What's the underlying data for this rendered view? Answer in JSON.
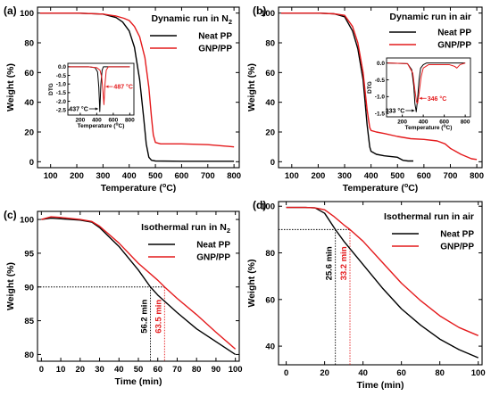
{
  "chart_data": [
    {
      "panel": "(a)",
      "type": "line",
      "title": "Dynamic run in N",
      "title_sub": "2",
      "xlabel": "Temperature (",
      "xlabel_deg": "o",
      "xlabel_unit": "C)",
      "ylabel": "Weight (%)",
      "xlim": [
        50,
        820
      ],
      "ylim": [
        -4,
        104
      ],
      "xticks": [
        100,
        200,
        300,
        400,
        500,
        600,
        700,
        800
      ],
      "yticks": [
        0,
        20,
        40,
        60,
        80,
        100
      ],
      "legend_position": "right",
      "series": [
        {
          "name": "Neat PP",
          "color": "#000000",
          "x": [
            60,
            200,
            300,
            350,
            375,
            400,
            420,
            440,
            455,
            465,
            475,
            485,
            500,
            600,
            700,
            800
          ],
          "y": [
            100,
            100,
            99.3,
            97,
            94,
            88,
            77,
            55,
            30,
            12,
            3,
            1,
            0.5,
            0.3,
            0.3,
            0.3
          ]
        },
        {
          "name": "GNP/PP",
          "color": "#e41a1c",
          "x": [
            60,
            200,
            300,
            350,
            380,
            400,
            420,
            440,
            460,
            475,
            485,
            492,
            500,
            520,
            600,
            700,
            800
          ],
          "y": [
            100,
            100,
            99.3,
            98,
            96.5,
            95,
            91,
            84,
            70,
            50,
            30,
            18,
            13,
            12,
            12,
            11.5,
            10
          ]
        }
      ],
      "inset": {
        "ylabel": "DTG",
        "xlabel": "Temperature (",
        "xlabel_deg": "o",
        "xlabel_unit": "C)",
        "xlim": [
          50,
          850
        ],
        "ylim": [
          -2.8,
          0.2
        ],
        "xticks": [
          200,
          400,
          600,
          800
        ],
        "yticks": [
          0.0,
          -0.5,
          -1.0,
          -1.5,
          -2.0,
          -2.5
        ],
        "ytick_labels": [
          "0.0",
          "-0.5",
          "-1.0",
          "-1.5",
          "-2.0",
          "-2.5"
        ],
        "series": [
          {
            "name": "Neat PP",
            "color": "#000000",
            "x": [
              60,
              300,
              380,
              410,
              425,
              437,
              450,
              465,
              480,
              520,
              800
            ],
            "y": [
              0,
              0,
              -0.05,
              -0.3,
              -1.2,
              -2.6,
              -1.0,
              -0.2,
              0,
              0,
              0
            ]
          },
          {
            "name": "GNP/PP",
            "color": "#e41a1c",
            "x": [
              60,
              300,
              400,
              440,
              460,
              475,
              487,
              500,
              515,
              540,
              800
            ],
            "y": [
              0,
              0,
              -0.05,
              -0.2,
              -0.6,
              -1.4,
              -2.2,
              -1.0,
              -0.2,
              0,
              0
            ]
          }
        ],
        "annotations": [
          {
            "text": "437",
            "unit": "C",
            "x": 437,
            "color": "#000000"
          },
          {
            "text": "487",
            "unit": "C",
            "x": 487,
            "color": "#e41a1c"
          }
        ]
      }
    },
    {
      "panel": "(b)",
      "type": "line",
      "title": "Dynamic run in air",
      "xlabel": "Temperature (",
      "xlabel_deg": "o",
      "xlabel_unit": "C)",
      "ylabel": "Weight (%)",
      "xlim": [
        50,
        820
      ],
      "ylim": [
        -4,
        104
      ],
      "xticks": [
        100,
        200,
        300,
        400,
        500,
        600,
        700,
        800
      ],
      "yticks": [
        0,
        20,
        40,
        60,
        80,
        100
      ],
      "legend_position": "right",
      "series": [
        {
          "name": "Neat PP",
          "color": "#000000",
          "x": [
            60,
            200,
            260,
            300,
            330,
            350,
            370,
            385,
            395,
            400,
            420,
            450,
            500,
            520,
            540,
            560
          ],
          "y": [
            100,
            100,
            99.5,
            97.5,
            88,
            76,
            55,
            25,
            10,
            7,
            5,
            4,
            3,
            1,
            0.5,
            0.5
          ]
        },
        {
          "name": "GNP/PP",
          "color": "#e41a1c",
          "x": [
            60,
            200,
            260,
            300,
            330,
            350,
            370,
            385,
            395,
            400,
            420,
            450,
            500,
            550,
            600,
            650,
            680,
            700,
            740,
            780,
            800
          ],
          "y": [
            100,
            100,
            99.5,
            98.5,
            91,
            80,
            60,
            35,
            23,
            21,
            20,
            19,
            17,
            15.5,
            15,
            14,
            12,
            9,
            5,
            2,
            1.5
          ]
        }
      ],
      "inset": {
        "ylabel": "DTG",
        "xlabel": "Temperature (",
        "xlabel_deg": "o",
        "xlabel_unit": "C)",
        "xlim": [
          50,
          850
        ],
        "ylim": [
          -1.6,
          0.15
        ],
        "xticks": [
          200,
          400,
          600,
          800
        ],
        "yticks": [
          0.0,
          -0.5,
          -1.0,
          -1.5
        ],
        "ytick_labels": [
          "0.0",
          "-0.5",
          "-1.0",
          "-1.5"
        ],
        "series": [
          {
            "name": "Neat PP",
            "color": "#000000",
            "x": [
              60,
              250,
              290,
              310,
              320,
              333,
              345,
              360,
              375,
              400,
              430,
              800
            ],
            "y": [
              0,
              -0.02,
              -0.2,
              -0.7,
              -1.2,
              -1.45,
              -1.1,
              -0.5,
              -0.15,
              -0.05,
              0,
              0
            ]
          },
          {
            "name": "GNP/PP",
            "color": "#e41a1c",
            "x": [
              60,
              250,
              300,
              320,
              335,
              346,
              360,
              380,
              400,
              450,
              550,
              650,
              700,
              720,
              750,
              800
            ],
            "y": [
              0,
              -0.02,
              -0.3,
              -0.8,
              -1.15,
              -1.2,
              -0.9,
              -0.4,
              -0.15,
              -0.05,
              -0.05,
              -0.05,
              -0.1,
              -0.15,
              -0.05,
              0
            ]
          }
        ],
        "annotations": [
          {
            "text": "333",
            "unit": "C",
            "x": 333,
            "color": "#000000"
          },
          {
            "text": "346",
            "unit": "C",
            "x": 346,
            "color": "#e41a1c"
          }
        ]
      }
    },
    {
      "panel": "(c)",
      "type": "line",
      "title": "Isothermal run in N",
      "title_sub": "2",
      "xlabel": "Time (min)",
      "ylabel": "Weight (%)",
      "xlim": [
        -2,
        102
      ],
      "ylim": [
        79,
        101.2
      ],
      "xticks": [
        0,
        10,
        20,
        30,
        40,
        50,
        60,
        70,
        80,
        90,
        100
      ],
      "yticks": [
        80,
        85,
        90,
        95,
        100
      ],
      "legend_position": "right",
      "series": [
        {
          "name": "Neat PP",
          "color": "#000000",
          "x": [
            0,
            5,
            10,
            20,
            26,
            30,
            40,
            50,
            56.2,
            60,
            70,
            80,
            90,
            100
          ],
          "y": [
            100,
            100.2,
            100.1,
            99.9,
            99.6,
            98.8,
            96,
            92.5,
            90,
            88.8,
            86.2,
            83.8,
            81.9,
            80
          ]
        },
        {
          "name": "GNP/PP",
          "color": "#e41a1c",
          "x": [
            0,
            5,
            10,
            20,
            26,
            30,
            40,
            50,
            60,
            63.5,
            70,
            80,
            90,
            100
          ],
          "y": [
            100,
            100.4,
            100.3,
            100,
            99.7,
            99,
            96.5,
            93.5,
            91,
            90,
            88.3,
            85.9,
            83.3,
            80.8
          ]
        }
      ],
      "reference_level": 90,
      "markers": [
        {
          "label": "56.2 min",
          "x": 56.2,
          "color": "#000000"
        },
        {
          "label": "63.5 min",
          "x": 63.5,
          "color": "#e41a1c"
        }
      ]
    },
    {
      "panel": "(d)",
      "type": "line",
      "title": "Isothermal run in air",
      "xlabel": "Time (min)",
      "ylabel": "Weight (%)",
      "xlim": [
        -4,
        102
      ],
      "ylim": [
        32,
        102
      ],
      "xticks": [
        0,
        20,
        40,
        60,
        80,
        100
      ],
      "yticks": [
        40,
        60,
        80,
        100
      ],
      "legend_position": "right",
      "series": [
        {
          "name": "Neat PP",
          "color": "#000000",
          "x": [
            0,
            10,
            15,
            20,
            25.6,
            30,
            40,
            50,
            60,
            70,
            80,
            90,
            100
          ],
          "y": [
            99.5,
            99.5,
            99.3,
            97,
            90,
            85,
            75,
            65,
            56,
            49,
            43,
            38.5,
            35
          ]
        },
        {
          "name": "GNP/PP",
          "color": "#e41a1c",
          "x": [
            0,
            10,
            15,
            20,
            25,
            30,
            33.2,
            40,
            50,
            60,
            70,
            80,
            90,
            100
          ],
          "y": [
            99.5,
            99.5,
            99.3,
            98.5,
            95.5,
            92,
            90,
            85,
            76,
            67,
            59.5,
            53,
            48,
            44.5
          ]
        }
      ],
      "reference_level": 90,
      "markers": [
        {
          "label": "25.6 min",
          "x": 25.6,
          "color": "#000000"
        },
        {
          "label": "33.2 min",
          "x": 33.2,
          "color": "#e41a1c"
        }
      ]
    }
  ]
}
